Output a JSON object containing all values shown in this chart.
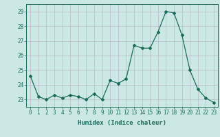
{
  "x": [
    0,
    1,
    2,
    3,
    4,
    5,
    6,
    7,
    8,
    9,
    10,
    11,
    12,
    13,
    14,
    15,
    16,
    17,
    18,
    19,
    20,
    21,
    22,
    23
  ],
  "y": [
    24.6,
    23.2,
    23.0,
    23.3,
    23.1,
    23.3,
    23.2,
    23.0,
    23.4,
    23.0,
    24.3,
    24.1,
    24.4,
    26.7,
    26.5,
    26.5,
    27.6,
    29.0,
    28.9,
    27.4,
    25.0,
    23.7,
    23.1,
    22.8
  ],
  "line_color": "#1a6b5a",
  "marker": "D",
  "marker_size": 2.0,
  "bg_color": "#cce8e4",
  "grid_color": "#b8b8c8",
  "xlabel": "Humidex (Indice chaleur)",
  "ylim": [
    22.5,
    29.5
  ],
  "yticks": [
    23,
    24,
    25,
    26,
    27,
    28,
    29
  ],
  "xticks": [
    0,
    1,
    2,
    3,
    4,
    5,
    6,
    7,
    8,
    9,
    10,
    11,
    12,
    13,
    14,
    15,
    16,
    17,
    18,
    19,
    20,
    21,
    22,
    23
  ],
  "axes_color": "#1a6b5a",
  "tick_color": "#1a6b5a",
  "label_fontsize": 6.5,
  "tick_fontsize": 5.5
}
